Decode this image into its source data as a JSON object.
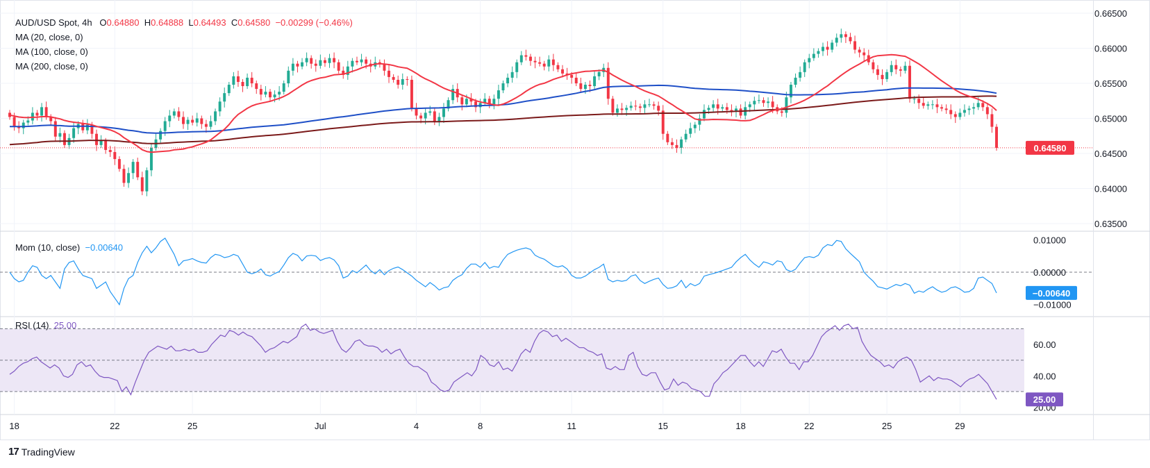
{
  "header": {
    "symbol": "AUD/USD Spot, 4h",
    "open_label": "O",
    "open": "0.64880",
    "high_label": "H",
    "high": "0.64888",
    "low_label": "L",
    "low": "0.64493",
    "close_label": "C",
    "close": "0.64580",
    "change": "−0.00299 (−0.46%)"
  },
  "ma_legend": [
    "MA (20, close, 0)",
    "MA (100, close, 0)",
    "MA (200, close, 0)"
  ],
  "mom_legend": {
    "label": "Mom (10, close)",
    "value": "−0.00640"
  },
  "rsi_legend": {
    "label": "RSI (14)",
    "value": "25.00"
  },
  "footer": {
    "brand": "TradingView",
    "logo": "17"
  },
  "colors": {
    "up": "#22ab94",
    "down": "#f23645",
    "ma20": "#f23645",
    "ma100": "#1e4fc7",
    "ma200": "#7b1a1a",
    "mom": "#2196f3",
    "rsi": "#7e57c2",
    "rsi_band": "#ede7f6"
  },
  "chart_data": [
    {
      "type": "candlestick",
      "title": "AUD/USD Spot, 4h",
      "y_ticks": [
        "0.66500",
        "0.66000",
        "0.65500",
        "0.65000",
        "0.64500",
        "0.64000",
        "0.63500"
      ],
      "ylim": [
        0.635,
        0.665
      ],
      "x_ticks": [
        "18",
        "22",
        "25",
        "Jul",
        "4",
        "8",
        "11",
        "15",
        "18",
        "22",
        "25",
        "29"
      ],
      "last_price": "0.64580",
      "close_series": [
        0.6502,
        0.6488,
        0.6486,
        0.6494,
        0.6497,
        0.6508,
        0.6504,
        0.6516,
        0.6502,
        0.6496,
        0.6474,
        0.6479,
        0.6462,
        0.6472,
        0.6486,
        0.6492,
        0.6483,
        0.6491,
        0.6478,
        0.6462,
        0.6468,
        0.6455,
        0.6452,
        0.6442,
        0.6428,
        0.6408,
        0.6422,
        0.6438,
        0.6416,
        0.6396,
        0.6426,
        0.6458,
        0.647,
        0.6482,
        0.6496,
        0.6504,
        0.651,
        0.6502,
        0.6492,
        0.6498,
        0.6494,
        0.65,
        0.6492,
        0.6488,
        0.6496,
        0.651,
        0.6524,
        0.6536,
        0.6548,
        0.656,
        0.6552,
        0.6546,
        0.6558,
        0.655,
        0.6542,
        0.6534,
        0.6538,
        0.653,
        0.6534,
        0.6538,
        0.655,
        0.6568,
        0.6578,
        0.6574,
        0.658,
        0.6586,
        0.6578,
        0.6575,
        0.6583,
        0.6579,
        0.6586,
        0.658,
        0.6568,
        0.6562,
        0.6574,
        0.6582,
        0.658,
        0.6584,
        0.6578,
        0.6574,
        0.658,
        0.6578,
        0.6568,
        0.6559,
        0.6555,
        0.6548,
        0.6556,
        0.6555,
        0.6514,
        0.6504,
        0.65,
        0.6508,
        0.651,
        0.6496,
        0.6502,
        0.6514,
        0.6526,
        0.6542,
        0.653,
        0.652,
        0.6528,
        0.6524,
        0.6516,
        0.6522,
        0.6528,
        0.652,
        0.6528,
        0.654,
        0.655,
        0.6558,
        0.6566,
        0.658,
        0.659,
        0.6588,
        0.6582,
        0.658,
        0.6578,
        0.6574,
        0.6584,
        0.6576,
        0.657,
        0.6564,
        0.6562,
        0.6558,
        0.655,
        0.6542,
        0.6548,
        0.6546,
        0.656,
        0.6566,
        0.6572,
        0.6528,
        0.6508,
        0.6514,
        0.6512,
        0.6515,
        0.6518,
        0.6517,
        0.6515,
        0.652,
        0.652,
        0.6518,
        0.6511,
        0.6478,
        0.6466,
        0.6462,
        0.6458,
        0.647,
        0.6478,
        0.6486,
        0.6491,
        0.65,
        0.6512,
        0.6515,
        0.652,
        0.6514,
        0.6516,
        0.6512,
        0.651,
        0.6514,
        0.6504,
        0.6516,
        0.652,
        0.6525,
        0.6526,
        0.6522,
        0.6524,
        0.6516,
        0.651,
        0.6508,
        0.653,
        0.6548,
        0.6558,
        0.6566,
        0.658,
        0.6586,
        0.6592,
        0.6596,
        0.6602,
        0.6598,
        0.6608,
        0.6615,
        0.662,
        0.6616,
        0.661,
        0.6598,
        0.6594,
        0.659,
        0.658,
        0.657,
        0.6562,
        0.6556,
        0.6566,
        0.6576,
        0.657,
        0.6568,
        0.6575,
        0.6528,
        0.6528,
        0.6522,
        0.6518,
        0.652,
        0.652,
        0.6516,
        0.6514,
        0.6512,
        0.6506,
        0.6502,
        0.6508,
        0.6512,
        0.6514,
        0.6516,
        0.6522,
        0.6516,
        0.6506,
        0.6488,
        0.6458
      ]
    },
    {
      "type": "line",
      "title": "Mom (10, close)",
      "y_ticks": [
        "0.01000",
        "0.00000",
        "−0.01000"
      ],
      "ylim": [
        -0.012,
        0.012
      ],
      "last_value": "−0.00640",
      "series_values": [
        0,
        -0.002,
        -0.003,
        -0.0025,
        0,
        0.002,
        0.0015,
        -0.001,
        -0.002,
        -0.001,
        -0.003,
        -0.005,
        0.001,
        0.003,
        0.0035,
        0.001,
        -0.001,
        -0.0015,
        -0.002,
        -0.005,
        -0.004,
        -0.003,
        -0.006,
        -0.008,
        -0.01,
        -0.005,
        -0.002,
        -0.001,
        0.003,
        0.006,
        0.008,
        0.006,
        0.0075,
        0.0095,
        0.0105,
        0.008,
        0.0055,
        0.002,
        0.0035,
        0.0038,
        0.0042,
        0.0035,
        0.003,
        0.0028,
        0.0045,
        0.0055,
        0.0052,
        0.0045,
        0.0048,
        0.0055,
        0.005,
        0.0025,
        0,
        -0.0005,
        0,
        0.001,
        -0.0008,
        -0.0012,
        -0.0004,
        0.0002,
        0.0022,
        0.0045,
        0.0058,
        0.0052,
        0.0035,
        0.005,
        0.0052,
        0.005,
        0.0036,
        0.0042,
        0.0045,
        0.0038,
        0.002,
        -0.0018,
        -0.0012,
        0.0005,
        -0.0002,
        0.001,
        0.0022,
        0.0005,
        -0.0005,
        0.0008,
        -0.0008,
        0.0005,
        0.0012,
        0.0016,
        0.0008,
        -0.0002,
        -0.0012,
        -0.0025,
        -0.0035,
        -0.0045,
        -0.0032,
        -0.0042,
        -0.0055,
        -0.0048,
        -0.0045,
        -0.0025,
        -0.0015,
        -0.0008,
        0.0012,
        0.0025,
        0.0025,
        0.0015,
        0.003,
        0.0012,
        0.0018,
        0.0015,
        0.0038,
        0.0055,
        0.0062,
        0.0068,
        0.0072,
        0.0075,
        0.007,
        0.0052,
        0.0045,
        0.004,
        0.003,
        0.002,
        0.0016,
        0.002,
        0.001,
        -0.001,
        -0.0018,
        -0.0018,
        -0.0012,
        -0.0002,
        0.0008,
        0.0015,
        0.0025,
        -0.0022,
        -0.003,
        -0.0025,
        -0.0028,
        -0.0025,
        -0.0012,
        -0.0008,
        -0.0026,
        -0.0035,
        -0.0028,
        -0.0022,
        -0.0018,
        -0.0038,
        -0.005,
        -0.0048,
        -0.0042,
        -0.0025,
        -0.0048,
        -0.0035,
        -0.0042,
        -0.0035,
        -0.0012,
        -0.0008,
        -0.0004,
        0,
        0.0005,
        0.001,
        0.0015,
        0.0032,
        0.0045,
        0.0055,
        0.0038,
        0.0025,
        0.0015,
        0.0032,
        0.0028,
        0.0022,
        0.0035,
        0.0032,
        0.0008,
        0.0002,
        0.0009,
        0.0028,
        0.0045,
        0.0048,
        0.0045,
        0.0052,
        0.0075,
        0.0085,
        0.0082,
        0.0098,
        0.0095,
        0.0072,
        0.0058,
        0.0045,
        0.0032,
        0.0,
        -0.0015,
        -0.0028,
        -0.0045,
        -0.0048,
        -0.0052,
        -0.0045,
        -0.0038,
        -0.0042,
        -0.0035,
        -0.004,
        -0.0065,
        -0.0058,
        -0.0062,
        -0.0052,
        -0.0045,
        -0.0055,
        -0.0062,
        -0.0058,
        -0.0048,
        -0.0045,
        -0.0052,
        -0.0062,
        -0.006,
        -0.005,
        -0.0018,
        -0.0015,
        -0.0025,
        -0.0035,
        -0.0064
      ]
    },
    {
      "type": "line",
      "title": "RSI (14)",
      "y_ticks": [
        "60.00",
        "40.00",
        "20.00"
      ],
      "ylim": [
        18,
        76
      ],
      "bands": [
        30,
        50,
        70
      ],
      "last_value": "25.00",
      "series_values": [
        41,
        43,
        46,
        48,
        49,
        51,
        52,
        49,
        47,
        45,
        47,
        45,
        40,
        39,
        41,
        47,
        49,
        46,
        47,
        43,
        40,
        39,
        39,
        38,
        37,
        30,
        33,
        28,
        36,
        43,
        50,
        55,
        57,
        59,
        58,
        57,
        59,
        56,
        56,
        57,
        56,
        57,
        55,
        55,
        56,
        60,
        63,
        66,
        65,
        69,
        68,
        66,
        68,
        66,
        65,
        62,
        59,
        55,
        57,
        58,
        60,
        62,
        61,
        63,
        65,
        71,
        73,
        69,
        70,
        68,
        67,
        68,
        69,
        62,
        57,
        55,
        58,
        62,
        63,
        60,
        59,
        59,
        58,
        55,
        57,
        54,
        56,
        57,
        52,
        48,
        46,
        46,
        44,
        42,
        36,
        34,
        31,
        30,
        31,
        36,
        38,
        40,
        42,
        40,
        44,
        53,
        51,
        47,
        46,
        49,
        44,
        45,
        43,
        48,
        54,
        57,
        55,
        62,
        67,
        69,
        68,
        65,
        66,
        62,
        64,
        62,
        60,
        58,
        58,
        56,
        55,
        53,
        54,
        45,
        44,
        46,
        44,
        44,
        53,
        55,
        46,
        41,
        40,
        42,
        42,
        36,
        31,
        32,
        38,
        34,
        36,
        35,
        32,
        31,
        30,
        27,
        27,
        35,
        38,
        42,
        44,
        47,
        50,
        53,
        53,
        49,
        46,
        49,
        46,
        51,
        56,
        55,
        57,
        52,
        48,
        48,
        44,
        49,
        49,
        53,
        59,
        65,
        68,
        70,
        72,
        69,
        72,
        73,
        70,
        71,
        62,
        57,
        53,
        51,
        49,
        46,
        47,
        45,
        49,
        51,
        52,
        50,
        44,
        36,
        38,
        40,
        37,
        39,
        38,
        38,
        37,
        35,
        33,
        36,
        38,
        39,
        41,
        38,
        35,
        30,
        25
      ]
    }
  ]
}
